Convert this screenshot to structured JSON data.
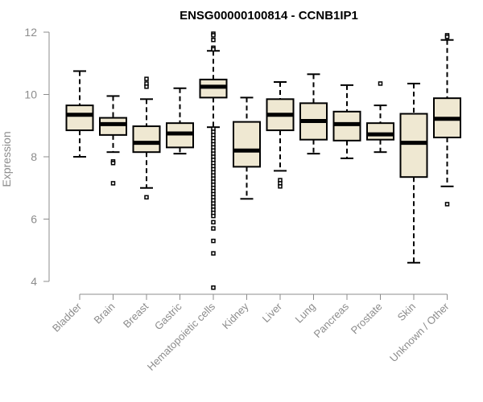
{
  "chart_data": {
    "type": "boxplot",
    "title": "ENSG00000100814 - CCNB1IP1",
    "xlabel": "",
    "ylabel": "Expression",
    "ylim": [
      3.7,
      12.1
    ],
    "yticks": [
      4,
      6,
      8,
      10,
      12
    ],
    "grid": false,
    "legend": "none",
    "colors": {
      "box_fill": "#efe8d2",
      "box_stroke": "#000000",
      "median": "#000000",
      "axis": "#8c8c8c"
    },
    "categories": [
      "Bladder",
      "Brain",
      "Breast",
      "Gastric",
      "Hematopoietic cells",
      "Kidney",
      "Liver",
      "Lung",
      "Pancreas",
      "Prostate",
      "Skin",
      "Unknown / Other"
    ],
    "boxes": [
      {
        "category": "Bladder",
        "whisker_low": 8.0,
        "q1": 8.85,
        "median": 9.35,
        "q3": 9.65,
        "whisker_high": 10.75,
        "outliers": []
      },
      {
        "category": "Brain",
        "whisker_low": 8.15,
        "q1": 8.7,
        "median": 9.05,
        "q3": 9.25,
        "whisker_high": 9.95,
        "outliers": [
          7.85,
          7.8,
          7.15
        ]
      },
      {
        "category": "Breast",
        "whisker_low": 7.0,
        "q1": 8.15,
        "median": 8.45,
        "q3": 8.98,
        "whisker_high": 9.85,
        "outliers": [
          10.5,
          10.35,
          10.25,
          6.7
        ]
      },
      {
        "category": "Gastric",
        "whisker_low": 8.1,
        "q1": 8.3,
        "median": 8.75,
        "q3": 9.08,
        "whisker_high": 10.2,
        "outliers": []
      },
      {
        "category": "Hematopoietic cells",
        "whisker_low": 8.95,
        "q1": 9.9,
        "median": 10.25,
        "q3": 10.48,
        "whisker_high": 11.4,
        "outliers": [
          11.95,
          11.9,
          11.75,
          11.5,
          11.45,
          8.9,
          8.8,
          8.7,
          8.6,
          8.5,
          8.4,
          8.3,
          8.2,
          8.1,
          8.0,
          7.9,
          7.8,
          7.7,
          7.6,
          7.5,
          7.4,
          7.3,
          7.2,
          7.1,
          7.0,
          6.9,
          6.8,
          6.7,
          6.6,
          6.5,
          6.4,
          6.3,
          6.2,
          6.1,
          5.9,
          5.7,
          5.3,
          4.9,
          3.8
        ]
      },
      {
        "category": "Kidney",
        "whisker_low": 6.65,
        "q1": 7.68,
        "median": 8.2,
        "q3": 9.12,
        "whisker_high": 9.9,
        "outliers": []
      },
      {
        "category": "Liver",
        "whisker_low": 7.55,
        "q1": 8.85,
        "median": 9.35,
        "q3": 9.85,
        "whisker_high": 10.4,
        "outliers": [
          7.25,
          7.15,
          7.05
        ]
      },
      {
        "category": "Lung",
        "whisker_low": 8.1,
        "q1": 8.55,
        "median": 9.15,
        "q3": 9.72,
        "whisker_high": 10.65,
        "outliers": []
      },
      {
        "category": "Pancreas",
        "whisker_low": 7.95,
        "q1": 8.52,
        "median": 9.05,
        "q3": 9.45,
        "whisker_high": 10.3,
        "outliers": []
      },
      {
        "category": "Prostate",
        "whisker_low": 8.15,
        "q1": 8.55,
        "median": 8.72,
        "q3": 9.08,
        "whisker_high": 9.65,
        "outliers": [
          10.35
        ]
      },
      {
        "category": "Skin",
        "whisker_low": 4.6,
        "q1": 7.35,
        "median": 8.45,
        "q3": 9.38,
        "whisker_high": 10.35,
        "outliers": []
      },
      {
        "category": "Unknown / Other",
        "whisker_low": 7.05,
        "q1": 8.62,
        "median": 9.22,
        "q3": 9.88,
        "whisker_high": 11.75,
        "outliers": [
          11.9,
          11.85,
          6.48
        ]
      }
    ]
  }
}
